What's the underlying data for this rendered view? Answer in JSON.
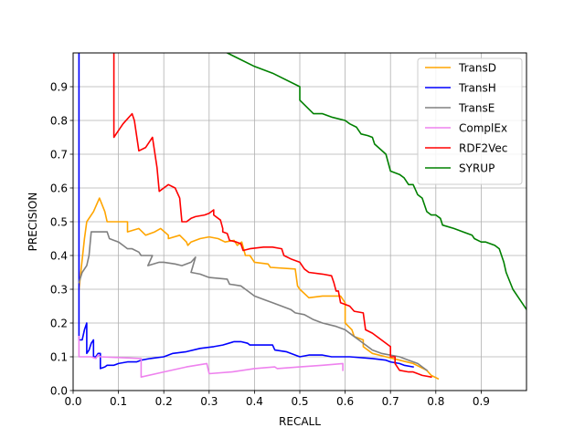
{
  "chart_data": {
    "type": "line",
    "xlabel": "RECALL",
    "ylabel": "PRECISION",
    "xlim": [
      0.0,
      1.0
    ],
    "ylim": [
      0.0,
      1.0
    ],
    "x_ticks": [
      "0.0",
      "0.1",
      "0.2",
      "0.3",
      "0.4",
      "0.5",
      "0.6",
      "0.7",
      "0.8",
      "0.9"
    ],
    "y_ticks": [
      "0.0",
      "0.1",
      "0.2",
      "0.3",
      "0.4",
      "0.5",
      "0.6",
      "0.7",
      "0.8",
      "0.9"
    ],
    "grid": true,
    "legend_position": "upper-right",
    "series": [
      {
        "name": "TransD",
        "color": "#ffa500",
        "points": [
          [
            0.013,
            0.3
          ],
          [
            0.025,
            0.45
          ],
          [
            0.03,
            0.5
          ],
          [
            0.045,
            0.53
          ],
          [
            0.058,
            0.57
          ],
          [
            0.07,
            0.53
          ],
          [
            0.075,
            0.5
          ],
          [
            0.1,
            0.5
          ],
          [
            0.12,
            0.5
          ],
          [
            0.12,
            0.47
          ],
          [
            0.145,
            0.48
          ],
          [
            0.16,
            0.46
          ],
          [
            0.18,
            0.47
          ],
          [
            0.193,
            0.48
          ],
          [
            0.21,
            0.46
          ],
          [
            0.21,
            0.45
          ],
          [
            0.235,
            0.46
          ],
          [
            0.25,
            0.44
          ],
          [
            0.253,
            0.43
          ],
          [
            0.26,
            0.44
          ],
          [
            0.28,
            0.45
          ],
          [
            0.3,
            0.455
          ],
          [
            0.32,
            0.45
          ],
          [
            0.335,
            0.44
          ],
          [
            0.355,
            0.445
          ],
          [
            0.362,
            0.43
          ],
          [
            0.372,
            0.44
          ],
          [
            0.38,
            0.4
          ],
          [
            0.39,
            0.4
          ],
          [
            0.4,
            0.38
          ],
          [
            0.43,
            0.375
          ],
          [
            0.435,
            0.365
          ],
          [
            0.49,
            0.36
          ],
          [
            0.495,
            0.31
          ],
          [
            0.5,
            0.3
          ],
          [
            0.52,
            0.275
          ],
          [
            0.55,
            0.28
          ],
          [
            0.59,
            0.28
          ],
          [
            0.6,
            0.26
          ],
          [
            0.6,
            0.2
          ],
          [
            0.615,
            0.18
          ],
          [
            0.62,
            0.16
          ],
          [
            0.64,
            0.15
          ],
          [
            0.64,
            0.13
          ],
          [
            0.66,
            0.11
          ],
          [
            0.69,
            0.1
          ],
          [
            0.72,
            0.09
          ],
          [
            0.75,
            0.08
          ],
          [
            0.78,
            0.06
          ],
          [
            0.79,
            0.045
          ],
          [
            0.805,
            0.035
          ]
        ]
      },
      {
        "name": "TransH",
        "color": "#0000ff",
        "points": [
          [
            0.013,
            1.0
          ],
          [
            0.013,
            0.15
          ],
          [
            0.02,
            0.15
          ],
          [
            0.025,
            0.18
          ],
          [
            0.03,
            0.2
          ],
          [
            0.03,
            0.11
          ],
          [
            0.035,
            0.12
          ],
          [
            0.04,
            0.14
          ],
          [
            0.045,
            0.15
          ],
          [
            0.045,
            0.1
          ],
          [
            0.05,
            0.1
          ],
          [
            0.055,
            0.11
          ],
          [
            0.06,
            0.11
          ],
          [
            0.06,
            0.065
          ],
          [
            0.07,
            0.07
          ],
          [
            0.075,
            0.075
          ],
          [
            0.09,
            0.075
          ],
          [
            0.1,
            0.08
          ],
          [
            0.12,
            0.085
          ],
          [
            0.13,
            0.085
          ],
          [
            0.14,
            0.085
          ],
          [
            0.15,
            0.09
          ],
          [
            0.17,
            0.095
          ],
          [
            0.2,
            0.1
          ],
          [
            0.22,
            0.11
          ],
          [
            0.25,
            0.115
          ],
          [
            0.28,
            0.125
          ],
          [
            0.31,
            0.13
          ],
          [
            0.33,
            0.135
          ],
          [
            0.355,
            0.145
          ],
          [
            0.37,
            0.145
          ],
          [
            0.385,
            0.14
          ],
          [
            0.39,
            0.135
          ],
          [
            0.44,
            0.135
          ],
          [
            0.445,
            0.12
          ],
          [
            0.47,
            0.115
          ],
          [
            0.49,
            0.105
          ],
          [
            0.5,
            0.1
          ],
          [
            0.52,
            0.105
          ],
          [
            0.55,
            0.105
          ],
          [
            0.57,
            0.1
          ],
          [
            0.6,
            0.1
          ],
          [
            0.61,
            0.1
          ],
          [
            0.66,
            0.095
          ],
          [
            0.69,
            0.09
          ],
          [
            0.7,
            0.085
          ],
          [
            0.72,
            0.08
          ],
          [
            0.73,
            0.075
          ],
          [
            0.75,
            0.07
          ]
        ]
      },
      {
        "name": "TransE",
        "color": "#808080",
        "points": [
          [
            0.013,
            0.32
          ],
          [
            0.02,
            0.35
          ],
          [
            0.03,
            0.37
          ],
          [
            0.035,
            0.4
          ],
          [
            0.04,
            0.47
          ],
          [
            0.06,
            0.47
          ],
          [
            0.075,
            0.47
          ],
          [
            0.08,
            0.45
          ],
          [
            0.09,
            0.445
          ],
          [
            0.1,
            0.44
          ],
          [
            0.11,
            0.43
          ],
          [
            0.12,
            0.42
          ],
          [
            0.13,
            0.42
          ],
          [
            0.145,
            0.41
          ],
          [
            0.15,
            0.4
          ],
          [
            0.175,
            0.4
          ],
          [
            0.165,
            0.37
          ],
          [
            0.19,
            0.38
          ],
          [
            0.2,
            0.38
          ],
          [
            0.225,
            0.375
          ],
          [
            0.24,
            0.37
          ],
          [
            0.26,
            0.38
          ],
          [
            0.27,
            0.395
          ],
          [
            0.26,
            0.35
          ],
          [
            0.28,
            0.345
          ],
          [
            0.3,
            0.335
          ],
          [
            0.34,
            0.33
          ],
          [
            0.345,
            0.315
          ],
          [
            0.37,
            0.31
          ],
          [
            0.38,
            0.3
          ],
          [
            0.4,
            0.28
          ],
          [
            0.42,
            0.27
          ],
          [
            0.44,
            0.26
          ],
          [
            0.46,
            0.25
          ],
          [
            0.48,
            0.24
          ],
          [
            0.49,
            0.23
          ],
          [
            0.51,
            0.225
          ],
          [
            0.53,
            0.21
          ],
          [
            0.55,
            0.2
          ],
          [
            0.58,
            0.19
          ],
          [
            0.6,
            0.18
          ],
          [
            0.62,
            0.16
          ],
          [
            0.63,
            0.15
          ],
          [
            0.65,
            0.13
          ],
          [
            0.66,
            0.12
          ],
          [
            0.68,
            0.11
          ],
          [
            0.72,
            0.1
          ],
          [
            0.74,
            0.09
          ],
          [
            0.76,
            0.08
          ],
          [
            0.78,
            0.06
          ]
        ]
      },
      {
        "name": "ComplEx",
        "color": "#ee82ee",
        "points": [
          [
            0.013,
            0.16
          ],
          [
            0.013,
            0.1
          ],
          [
            0.02,
            0.1
          ],
          [
            0.04,
            0.1
          ],
          [
            0.05,
            0.095
          ],
          [
            0.055,
            0.105
          ],
          [
            0.06,
            0.1
          ],
          [
            0.15,
            0.095
          ],
          [
            0.15,
            0.04
          ],
          [
            0.2,
            0.055
          ],
          [
            0.25,
            0.07
          ],
          [
            0.295,
            0.08
          ],
          [
            0.3,
            0.05
          ],
          [
            0.35,
            0.055
          ],
          [
            0.4,
            0.065
          ],
          [
            0.445,
            0.07
          ],
          [
            0.45,
            0.065
          ],
          [
            0.5,
            0.07
          ],
          [
            0.55,
            0.075
          ],
          [
            0.595,
            0.08
          ],
          [
            0.595,
            0.06
          ]
        ]
      },
      {
        "name": "RDF2Vec",
        "color": "#ff0000",
        "points": [
          [
            0.09,
            1.0
          ],
          [
            0.09,
            0.75
          ],
          [
            0.1,
            0.77
          ],
          [
            0.11,
            0.79
          ],
          [
            0.13,
            0.82
          ],
          [
            0.135,
            0.8
          ],
          [
            0.145,
            0.71
          ],
          [
            0.16,
            0.72
          ],
          [
            0.17,
            0.74
          ],
          [
            0.175,
            0.75
          ],
          [
            0.185,
            0.66
          ],
          [
            0.19,
            0.59
          ],
          [
            0.2,
            0.6
          ],
          [
            0.21,
            0.61
          ],
          [
            0.225,
            0.6
          ],
          [
            0.235,
            0.57
          ],
          [
            0.24,
            0.5
          ],
          [
            0.25,
            0.5
          ],
          [
            0.26,
            0.51
          ],
          [
            0.27,
            0.515
          ],
          [
            0.29,
            0.52
          ],
          [
            0.3,
            0.525
          ],
          [
            0.31,
            0.535
          ],
          [
            0.31,
            0.52
          ],
          [
            0.325,
            0.505
          ],
          [
            0.33,
            0.48
          ],
          [
            0.33,
            0.47
          ],
          [
            0.34,
            0.465
          ],
          [
            0.345,
            0.445
          ],
          [
            0.36,
            0.44
          ],
          [
            0.37,
            0.435
          ],
          [
            0.375,
            0.415
          ],
          [
            0.39,
            0.42
          ],
          [
            0.42,
            0.425
          ],
          [
            0.44,
            0.425
          ],
          [
            0.46,
            0.42
          ],
          [
            0.465,
            0.4
          ],
          [
            0.48,
            0.39
          ],
          [
            0.5,
            0.38
          ],
          [
            0.51,
            0.36
          ],
          [
            0.52,
            0.35
          ],
          [
            0.55,
            0.345
          ],
          [
            0.57,
            0.34
          ],
          [
            0.575,
            0.32
          ],
          [
            0.58,
            0.295
          ],
          [
            0.585,
            0.295
          ],
          [
            0.59,
            0.26
          ],
          [
            0.61,
            0.25
          ],
          [
            0.62,
            0.235
          ],
          [
            0.64,
            0.23
          ],
          [
            0.645,
            0.18
          ],
          [
            0.66,
            0.17
          ],
          [
            0.68,
            0.15
          ],
          [
            0.7,
            0.13
          ],
          [
            0.7,
            0.1
          ],
          [
            0.71,
            0.1
          ],
          [
            0.71,
            0.08
          ],
          [
            0.72,
            0.06
          ],
          [
            0.74,
            0.055
          ],
          [
            0.75,
            0.055
          ],
          [
            0.76,
            0.05
          ],
          [
            0.77,
            0.045
          ],
          [
            0.79,
            0.04
          ]
        ]
      },
      {
        "name": "SYRUP",
        "color": "#008000",
        "points": [
          [
            0.34,
            1.0
          ],
          [
            0.4,
            0.96
          ],
          [
            0.44,
            0.94
          ],
          [
            0.5,
            0.9
          ],
          [
            0.5,
            0.86
          ],
          [
            0.53,
            0.82
          ],
          [
            0.55,
            0.82
          ],
          [
            0.57,
            0.81
          ],
          [
            0.6,
            0.8
          ],
          [
            0.61,
            0.79
          ],
          [
            0.625,
            0.78
          ],
          [
            0.635,
            0.76
          ],
          [
            0.65,
            0.755
          ],
          [
            0.66,
            0.75
          ],
          [
            0.665,
            0.73
          ],
          [
            0.69,
            0.7
          ],
          [
            0.7,
            0.65
          ],
          [
            0.72,
            0.64
          ],
          [
            0.73,
            0.63
          ],
          [
            0.74,
            0.61
          ],
          [
            0.75,
            0.61
          ],
          [
            0.76,
            0.58
          ],
          [
            0.77,
            0.57
          ],
          [
            0.78,
            0.53
          ],
          [
            0.79,
            0.52
          ],
          [
            0.8,
            0.52
          ],
          [
            0.81,
            0.51
          ],
          [
            0.815,
            0.49
          ],
          [
            0.84,
            0.48
          ],
          [
            0.86,
            0.47
          ],
          [
            0.88,
            0.46
          ],
          [
            0.885,
            0.45
          ],
          [
            0.9,
            0.44
          ],
          [
            0.91,
            0.44
          ],
          [
            0.93,
            0.43
          ],
          [
            0.94,
            0.42
          ],
          [
            0.95,
            0.38
          ],
          [
            0.955,
            0.35
          ],
          [
            0.97,
            0.3
          ],
          [
            0.98,
            0.28
          ],
          [
            1.0,
            0.24
          ]
        ]
      }
    ]
  }
}
